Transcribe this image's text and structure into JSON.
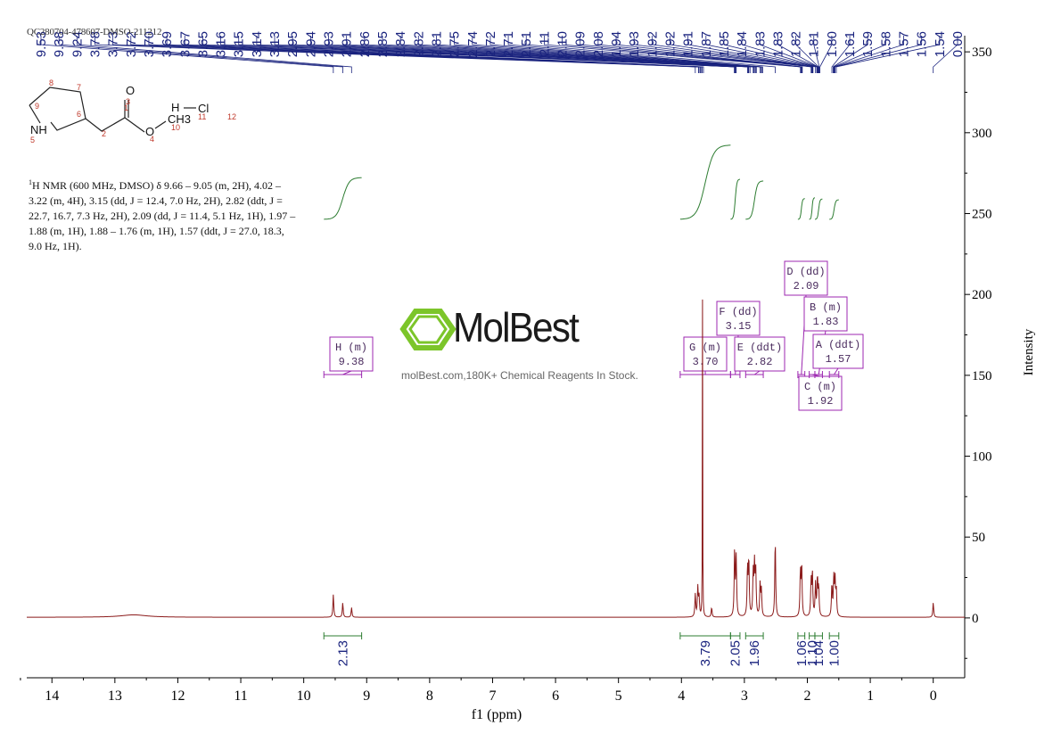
{
  "sample_id": "QC280704-478607-DMSO-211212",
  "watermark": {
    "brand": "MolBest",
    "tagline": "molBest.com,180K+ Chemical Reagents In Stock."
  },
  "nmr_description": {
    "superscript": "1",
    "text": "H NMR (600 MHz, DMSO) δ 9.66 – 9.05 (m, 2H), 4.02 – 3.22 (m, 4H), 3.15 (dd, J = 12.4, 7.0 Hz, 2H), 2.82 (ddt, J = 22.7, 16.7, 7.3 Hz, 2H), 2.09 (dd, J = 11.4, 5.1 Hz, 1H), 1.97 – 1.88 (m, 1H), 1.88 – 1.76 (m, 1H), 1.57 (ddt, J = 27.0, 18.3, 9.0 Hz, 1H)."
  },
  "structure": {
    "atom_labels": [
      "NH",
      "O",
      "O",
      "CH3",
      "H",
      "Cl"
    ],
    "atom_numbers": [
      "1",
      "2",
      "3",
      "4",
      "5",
      "6",
      "7",
      "8",
      "9",
      "10",
      "11",
      "12"
    ]
  },
  "chart_data": {
    "type": "line",
    "title": "",
    "xlabel": "f1 (ppm)",
    "ylabel": "Intensity",
    "xlim": [
      14.4,
      -0.5
    ],
    "ylim": [
      -37,
      360
    ],
    "x_ticks": [
      14,
      13,
      12,
      11,
      10,
      9,
      8,
      7,
      6,
      5,
      4,
      3,
      2,
      1,
      0
    ],
    "y_ticks": [
      0,
      50,
      100,
      150,
      200,
      250,
      300,
      350
    ],
    "peak_labels": [
      "9.53",
      "9.38",
      "9.24",
      "3.78",
      "3.73",
      "3.72",
      "3.70",
      "3.69",
      "3.67",
      "3.65",
      "3.16",
      "3.15",
      "3.14",
      "3.13",
      "2.95",
      "2.94",
      "2.93",
      "2.91",
      "2.86",
      "2.85",
      "2.84",
      "2.82",
      "2.81",
      "2.75",
      "2.74",
      "2.72",
      "2.71",
      "2.51",
      "2.11",
      "2.10",
      "2.09",
      "2.08",
      "1.94",
      "1.93",
      "1.92",
      "1.92",
      "1.91",
      "1.87",
      "1.85",
      "1.84",
      "1.83",
      "1.83",
      "1.82",
      "1.81",
      "1.80",
      "1.61",
      "1.59",
      "1.58",
      "1.57",
      "1.56",
      "1.54",
      "0.00"
    ],
    "peaks": [
      {
        "ppm": 9.53,
        "height": 14
      },
      {
        "ppm": 9.38,
        "height": 9
      },
      {
        "ppm": 9.24,
        "height": 6
      },
      {
        "ppm": 3.78,
        "height": 14
      },
      {
        "ppm": 3.74,
        "height": 18
      },
      {
        "ppm": 3.72,
        "height": 12
      },
      {
        "ppm": 3.665,
        "height": 197
      },
      {
        "ppm": 3.52,
        "height": 6
      },
      {
        "ppm": 3.155,
        "height": 42
      },
      {
        "ppm": 3.13,
        "height": 36
      },
      {
        "ppm": 2.95,
        "height": 30
      },
      {
        "ppm": 2.93,
        "height": 35
      },
      {
        "ppm": 2.86,
        "height": 26
      },
      {
        "ppm": 2.84,
        "height": 31
      },
      {
        "ppm": 2.82,
        "height": 28
      },
      {
        "ppm": 2.75,
        "height": 20
      },
      {
        "ppm": 2.73,
        "height": 16
      },
      {
        "ppm": 2.51,
        "height": 49
      },
      {
        "ppm": 2.11,
        "height": 28
      },
      {
        "ppm": 2.09,
        "height": 32
      },
      {
        "ppm": 1.94,
        "height": 22
      },
      {
        "ppm": 1.92,
        "height": 27
      },
      {
        "ppm": 1.87,
        "height": 20
      },
      {
        "ppm": 1.84,
        "height": 24
      },
      {
        "ppm": 1.82,
        "height": 18
      },
      {
        "ppm": 1.61,
        "height": 20
      },
      {
        "ppm": 1.58,
        "height": 23
      },
      {
        "ppm": 1.56,
        "height": 22
      },
      {
        "ppm": 1.54,
        "height": 16
      },
      {
        "ppm": 0.0,
        "height": 9
      }
    ],
    "integrals": [
      {
        "value": "2.13",
        "from": 9.68,
        "to": 9.08
      },
      {
        "value": "3.79",
        "from": 4.02,
        "to": 3.22
      },
      {
        "value": "2.05",
        "from": 3.22,
        "to": 3.07
      },
      {
        "value": "1.96",
        "from": 2.98,
        "to": 2.7
      },
      {
        "value": "1.06",
        "from": 2.15,
        "to": 2.04
      },
      {
        "value": "1.10",
        "from": 1.97,
        "to": 1.88
      },
      {
        "value": "1.04",
        "from": 1.88,
        "to": 1.76
      },
      {
        "value": "1.00",
        "from": 1.65,
        "to": 1.5
      }
    ],
    "multiplets": [
      {
        "label": "H (m)",
        "shift": "9.38",
        "from": 9.68,
        "to": 9.08
      },
      {
        "label": "G (m)",
        "shift": "3.70",
        "from": 4.02,
        "to": 3.22
      },
      {
        "label": "F (dd)",
        "shift": "3.15",
        "from": 3.22,
        "to": 3.07
      },
      {
        "label": "E (ddt)",
        "shift": "2.82",
        "from": 2.98,
        "to": 2.7
      },
      {
        "label": "D (dd)",
        "shift": "2.09",
        "from": 2.15,
        "to": 2.04
      },
      {
        "label": "C (m)",
        "shift": "1.92",
        "from": 1.97,
        "to": 1.88
      },
      {
        "label": "B (m)",
        "shift": "1.83",
        "from": 1.88,
        "to": 1.76
      },
      {
        "label": "A (ddt)",
        "shift": "1.57",
        "from": 1.65,
        "to": 1.5
      }
    ],
    "colors": {
      "spectrum": "#8b1a1a",
      "peak_labels": "#1a237e",
      "integral": "#2e7d32",
      "multiplet_box": "#9c27b0",
      "axis": "#000000"
    }
  }
}
